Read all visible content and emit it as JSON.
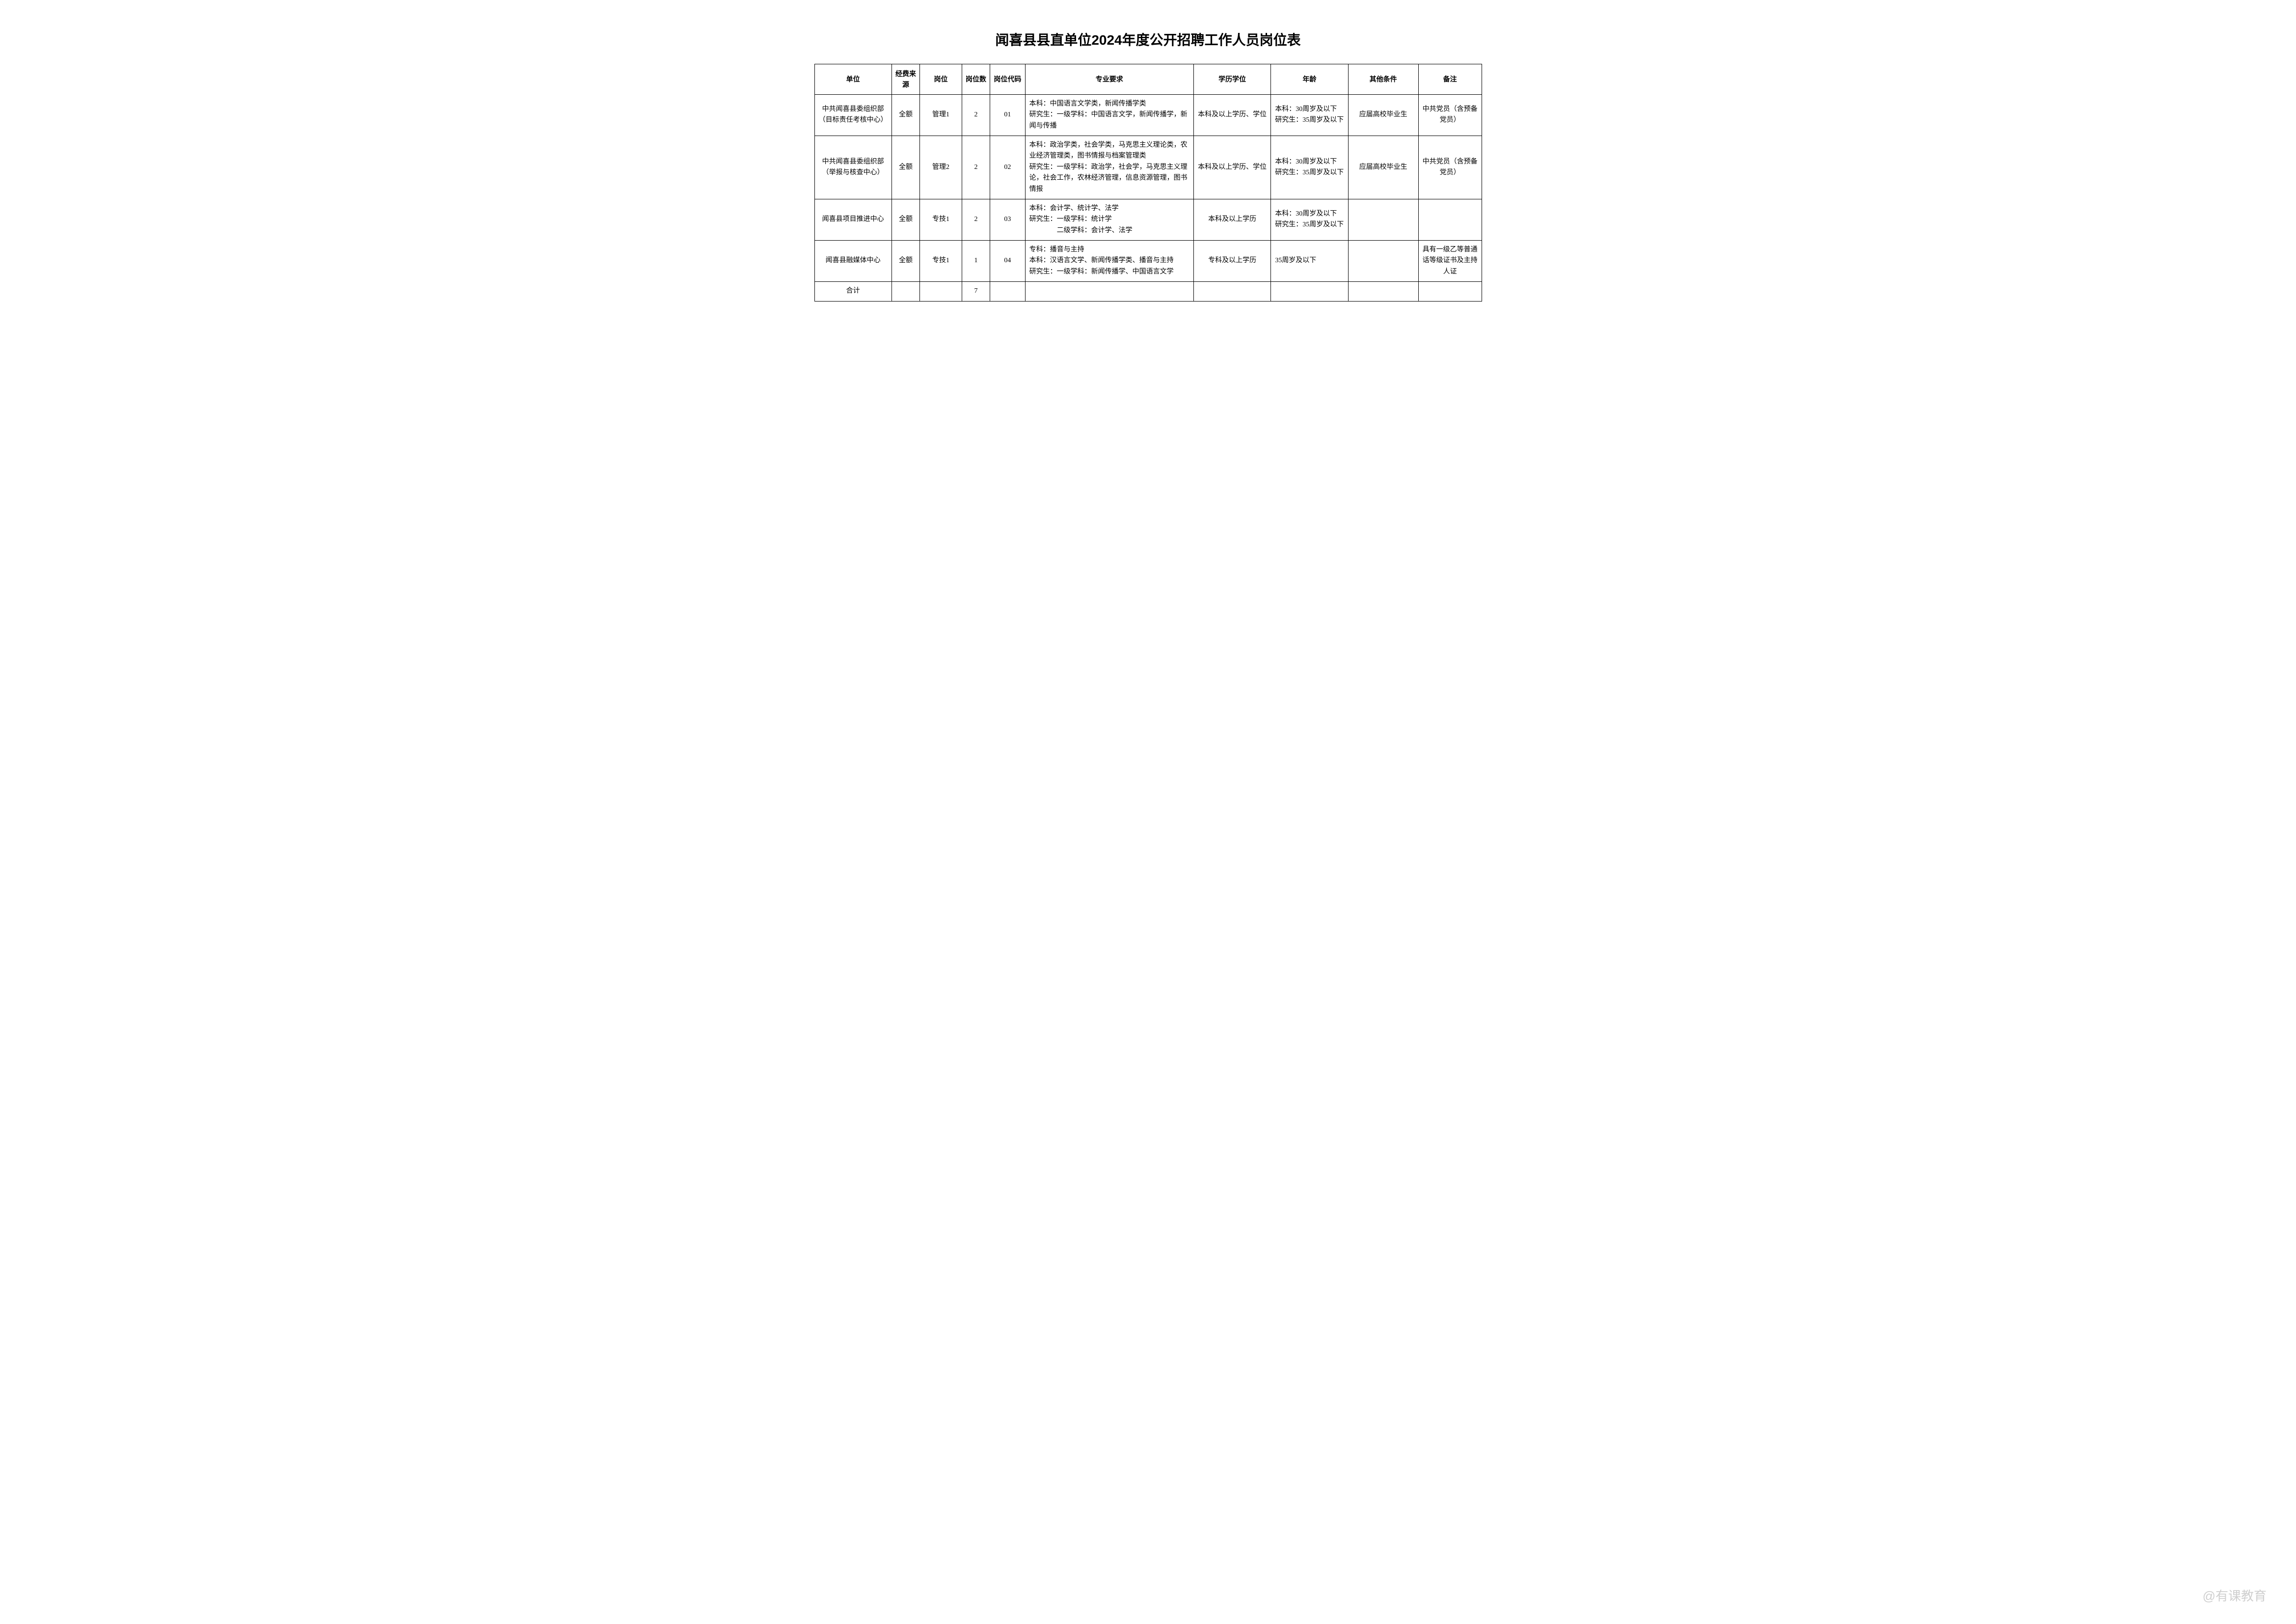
{
  "title": "闻喜县县直单位2024年度公开招聘工作人员岗位表",
  "headers": {
    "unit": "单位",
    "fund": "经费来源",
    "position": "岗位",
    "count": "岗位数",
    "code": "岗位代码",
    "major": "专业要求",
    "edu": "学历学位",
    "age": "年龄",
    "other": "其他条件",
    "note": "备注"
  },
  "rows": [
    {
      "unit": "中共闻喜县委组织部（目标责任考核中心）",
      "fund": "全额",
      "position": "管理1",
      "count": "2",
      "code": "01",
      "major": "本科：中国语言文学类，新闻传播学类\n研究生：一级学科：中国语言文学，新闻传播学，新闻与传播",
      "edu": "本科及以上学历、学位",
      "age": "本科：30周岁及以下\n研究生：35周岁及以下",
      "other": "应届高校毕业生",
      "note": "中共党员（含预备党员）"
    },
    {
      "unit": "中共闻喜县委组织部（举报与核查中心）",
      "fund": "全额",
      "position": "管理2",
      "count": "2",
      "code": "02",
      "major": "本科：政治学类，社会学类，马克思主义理论类，农业经济管理类，图书情报与档案管理类\n研究生：一级学科：政治学，社会学，马克思主义理论，社会工作，农林经济管理，信息资源管理，图书情报",
      "edu": "本科及以上学历、学位",
      "age": "本科：30周岁及以下\n研究生：35周岁及以下",
      "other": "应届高校毕业生",
      "note": "中共党员（含预备党员）"
    },
    {
      "unit": "闻喜县项目推进中心",
      "fund": "全额",
      "position": "专技1",
      "count": "2",
      "code": "03",
      "major": "本科：会计学、统计学、法学\n研究生：一级学科：统计学\n　　　　二级学科：会计学、法学",
      "edu": "本科及以上学历",
      "age": "本科：30周岁及以下\n研究生：35周岁及以下",
      "other": "",
      "note": ""
    },
    {
      "unit": "闻喜县融媒体中心",
      "fund": "全额",
      "position": "专技1",
      "count": "1",
      "code": "04",
      "major": "专科：播音与主持\n本科：汉语言文学、新闻传播学类、播音与主持\n研究生：一级学科：新闻传播学、中国语言文学",
      "edu": "专科及以上学历",
      "age": "35周岁及以下",
      "other": "",
      "note": "具有一级乙等普通话等级证书及主持人证"
    }
  ],
  "total": {
    "label": "合计",
    "count": "7"
  },
  "watermark": "@有课教育",
  "style": {
    "title_fontsize": 28,
    "cell_fontsize": 14,
    "border_color": "#000000",
    "background": "#ffffff",
    "text_color": "#000000"
  }
}
